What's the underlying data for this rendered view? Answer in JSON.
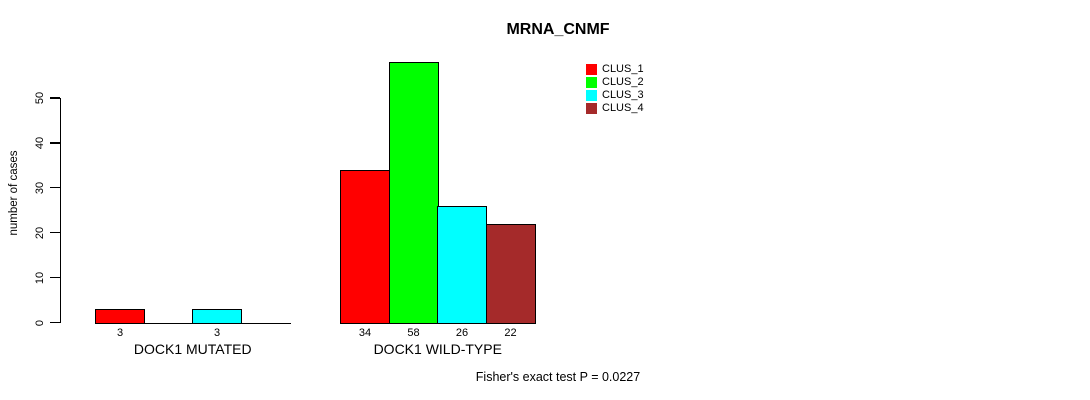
{
  "chart_data": {
    "type": "bar",
    "title": "MRNA_CNMF",
    "ylabel": "number of cases",
    "xlabel": "",
    "yticks": [
      0,
      10,
      20,
      30,
      40,
      50
    ],
    "ylim": [
      0,
      58
    ],
    "grid": false,
    "legend_position": "top-right",
    "groups": [
      "DOCK1 MUTATED",
      "DOCK1 WILD-TYPE"
    ],
    "series": [
      {
        "name": "CLUS_1",
        "color": "#ff0000",
        "values": [
          3,
          34
        ]
      },
      {
        "name": "CLUS_2",
        "color": "#00ff00",
        "values": [
          0,
          58
        ]
      },
      {
        "name": "CLUS_3",
        "color": "#00ffff",
        "values": [
          3,
          26
        ]
      },
      {
        "name": "CLUS_4",
        "color": "#a52a2a",
        "values": [
          0,
          22
        ]
      }
    ],
    "bar_value_labels": {
      "dock1_mutated": [
        3,
        3
      ],
      "dock1_wild_type": [
        34,
        58,
        26,
        22
      ]
    },
    "annotation": "Fisher's exact test P = 0.0227",
    "axis_color": "#000000",
    "background_color": "#ffffff"
  }
}
